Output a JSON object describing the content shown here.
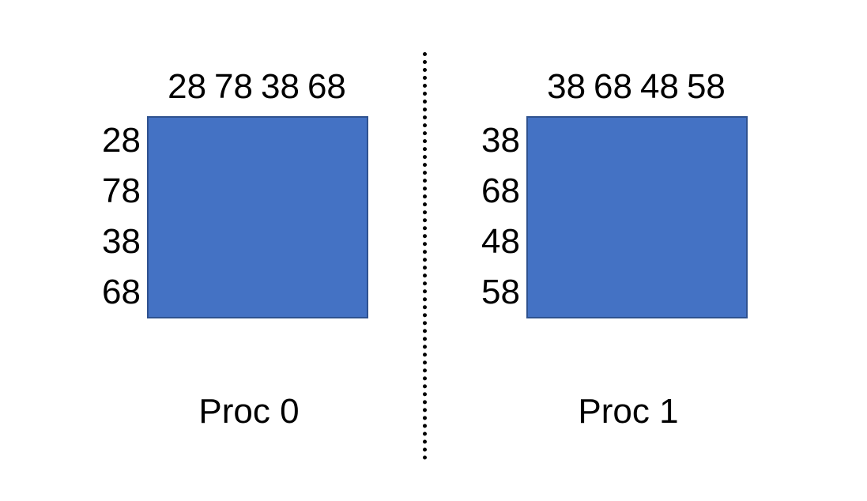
{
  "panels": [
    {
      "col_labels": [
        "28",
        "78",
        "38",
        "68"
      ],
      "row_labels": [
        "28",
        "78",
        "38",
        "68"
      ],
      "label": "Proc 0",
      "block_color": "#4472C4"
    },
    {
      "col_labels": [
        "38",
        "68",
        "48",
        "58"
      ],
      "row_labels": [
        "38",
        "68",
        "48",
        "58"
      ],
      "label": "Proc 1",
      "block_color": "#4472C4"
    }
  ]
}
